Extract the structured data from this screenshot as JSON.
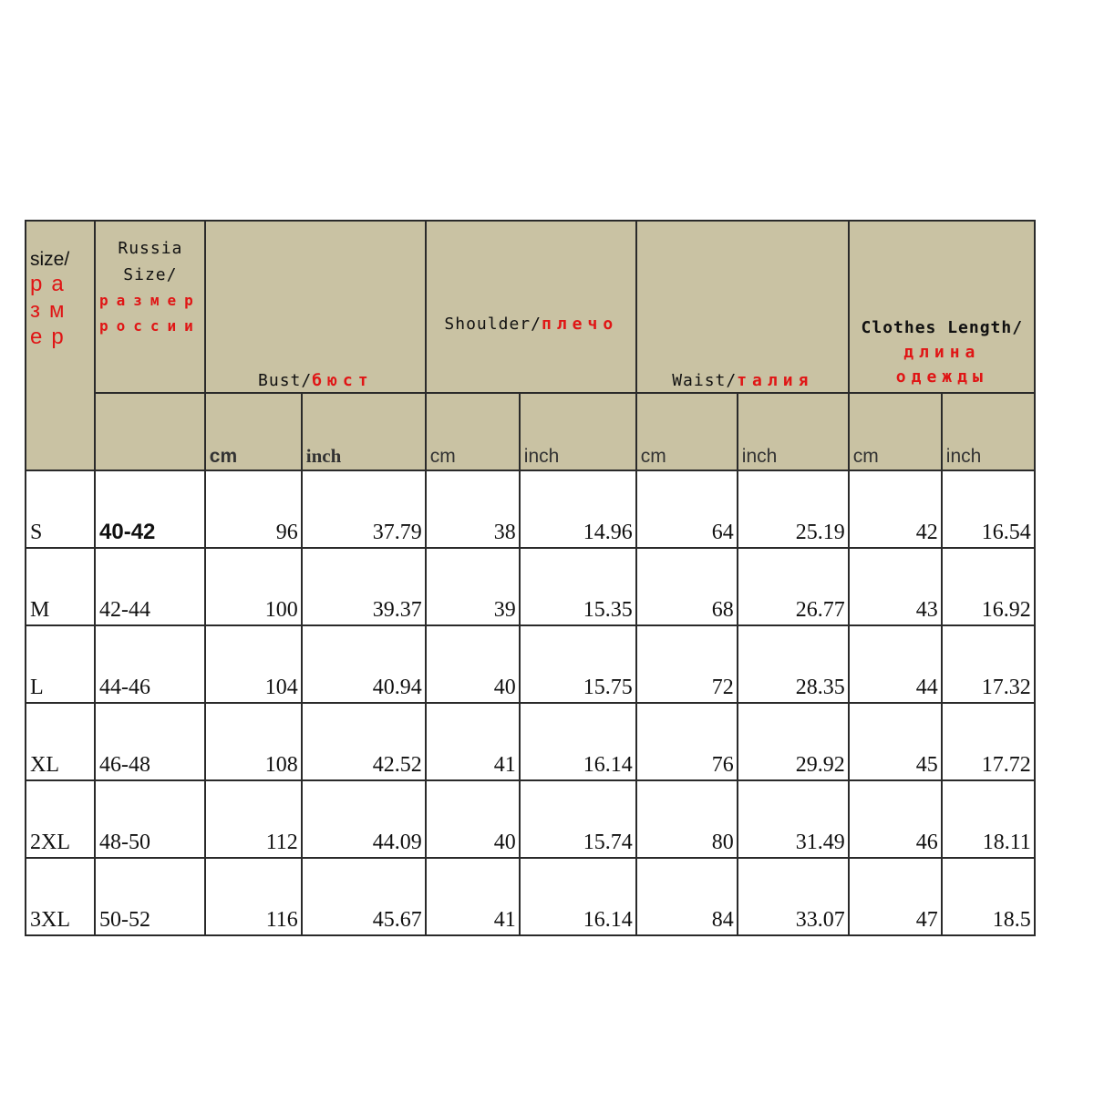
{
  "header": {
    "size": {
      "en": "size/",
      "ru": "размер"
    },
    "russia_size": {
      "en": "Russia Size/",
      "ru": "размер россии"
    },
    "groups": [
      {
        "en": "Bust/",
        "ru": "бюст"
      },
      {
        "en": "Shoulder/",
        "ru": "плечо"
      },
      {
        "en": "Waist/",
        "ru": "талия"
      },
      {
        "en": "Clothes Length/",
        "ru": "длина одежды"
      }
    ],
    "units": [
      "cm",
      "inch",
      "cm",
      "inch",
      "cm",
      "inch",
      "cm",
      "inch"
    ]
  },
  "rows": [
    {
      "size": "S",
      "ru": "40-42",
      "values": [
        "96",
        "37.79",
        "38",
        "14.96",
        "64",
        "25.19",
        "42",
        "16.54"
      ]
    },
    {
      "size": "M",
      "ru": "42-44",
      "values": [
        "100",
        "39.37",
        "39",
        "15.35",
        "68",
        "26.77",
        "43",
        "16.92"
      ]
    },
    {
      "size": "L",
      "ru": "44-46",
      "values": [
        "104",
        "40.94",
        "40",
        "15.75",
        "72",
        "28.35",
        "44",
        "17.32"
      ]
    },
    {
      "size": "XL",
      "ru": "46-48",
      "values": [
        "108",
        "42.52",
        "41",
        "16.14",
        "76",
        "29.92",
        "45",
        "17.72"
      ]
    },
    {
      "size": "2XL",
      "ru": "48-50",
      "values": [
        "112",
        "44.09",
        "40",
        "15.74",
        "80",
        "31.49",
        "46",
        "18.11"
      ]
    },
    {
      "size": "3XL",
      "ru": "50-52",
      "values": [
        "116",
        "45.67",
        "41",
        "16.14",
        "84",
        "33.07",
        "47",
        "18.5"
      ]
    }
  ],
  "colors": {
    "header_bg": "#c9c2a3",
    "russian_text": "#e01515",
    "border": "#2a2a2a"
  }
}
